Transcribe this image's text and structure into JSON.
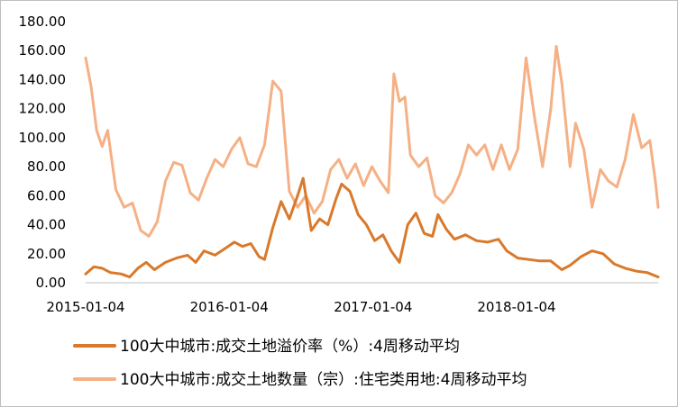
{
  "chart_data": {
    "type": "line",
    "title": "",
    "xlabel": "",
    "ylabel": "",
    "ylim": [
      0,
      180
    ],
    "yticks": [
      "0.00",
      "20.00",
      "40.00",
      "60.00",
      "80.00",
      "100.00",
      "120.00",
      "140.00",
      "160.00",
      "180.00"
    ],
    "xticks": [
      "2015-01-04",
      "2016-01-04",
      "2017-01-04",
      "2018-01-04"
    ],
    "xtick_values": [
      "2015-01-04",
      "2016-01-04",
      "2017-01-04",
      "2018-01-04"
    ],
    "x_start": "2015-01-04",
    "x_end": "2018-12-30",
    "grid": false,
    "legend_position": "bottom",
    "series": [
      {
        "name": "100大中城市:成交土地溢价率（%）:4周移动平均",
        "color": "#d9792b",
        "points": [
          [
            "2015-01-04",
            6
          ],
          [
            "2015-01-25",
            11
          ],
          [
            "2015-02-15",
            10
          ],
          [
            "2015-03-08",
            7
          ],
          [
            "2015-04-05",
            6
          ],
          [
            "2015-04-26",
            4
          ],
          [
            "2015-05-17",
            10
          ],
          [
            "2015-06-07",
            14
          ],
          [
            "2015-06-28",
            9
          ],
          [
            "2015-07-26",
            14
          ],
          [
            "2015-08-23",
            17
          ],
          [
            "2015-09-20",
            19
          ],
          [
            "2015-10-11",
            14
          ],
          [
            "2015-11-01",
            22
          ],
          [
            "2015-11-29",
            19
          ],
          [
            "2015-12-27",
            24
          ],
          [
            "2016-01-17",
            28
          ],
          [
            "2016-02-07",
            25
          ],
          [
            "2016-02-28",
            27
          ],
          [
            "2016-03-20",
            18
          ],
          [
            "2016-04-03",
            16
          ],
          [
            "2016-04-24",
            38
          ],
          [
            "2016-05-15",
            56
          ],
          [
            "2016-06-05",
            44
          ],
          [
            "2016-06-26",
            60
          ],
          [
            "2016-07-10",
            72
          ],
          [
            "2016-07-31",
            36
          ],
          [
            "2016-08-21",
            44
          ],
          [
            "2016-09-11",
            40
          ],
          [
            "2016-10-02",
            58
          ],
          [
            "2016-10-16",
            68
          ],
          [
            "2016-11-06",
            63
          ],
          [
            "2016-11-27",
            47
          ],
          [
            "2016-12-18",
            40
          ],
          [
            "2017-01-08",
            29
          ],
          [
            "2017-01-29",
            33
          ],
          [
            "2017-02-19",
            22
          ],
          [
            "2017-03-12",
            14
          ],
          [
            "2017-04-02",
            40
          ],
          [
            "2017-04-23",
            48
          ],
          [
            "2017-05-14",
            34
          ],
          [
            "2017-06-04",
            32
          ],
          [
            "2017-06-18",
            47
          ],
          [
            "2017-07-09",
            37
          ],
          [
            "2017-07-30",
            30
          ],
          [
            "2017-08-27",
            33
          ],
          [
            "2017-09-24",
            29
          ],
          [
            "2017-10-22",
            28
          ],
          [
            "2017-11-19",
            30
          ],
          [
            "2017-12-10",
            22
          ],
          [
            "2018-01-07",
            17
          ],
          [
            "2018-02-04",
            16
          ],
          [
            "2018-03-04",
            15
          ],
          [
            "2018-04-01",
            15
          ],
          [
            "2018-04-29",
            9
          ],
          [
            "2018-05-20",
            12
          ],
          [
            "2018-06-17",
            18
          ],
          [
            "2018-07-15",
            22
          ],
          [
            "2018-08-12",
            20
          ],
          [
            "2018-09-09",
            13
          ],
          [
            "2018-10-07",
            10
          ],
          [
            "2018-11-04",
            8
          ],
          [
            "2018-12-02",
            7
          ],
          [
            "2018-12-30",
            4
          ]
        ]
      },
      {
        "name": "100大中城市:成交土地数量（宗）:住宅类用地:4周移动平均",
        "color": "#f5b085",
        "points": [
          [
            "2015-01-04",
            155
          ],
          [
            "2015-01-18",
            135
          ],
          [
            "2015-02-01",
            105
          ],
          [
            "2015-02-15",
            94
          ],
          [
            "2015-03-01",
            105
          ],
          [
            "2015-03-22",
            64
          ],
          [
            "2015-04-12",
            52
          ],
          [
            "2015-05-03",
            55
          ],
          [
            "2015-05-24",
            36
          ],
          [
            "2015-06-14",
            32
          ],
          [
            "2015-07-05",
            42
          ],
          [
            "2015-07-26",
            70
          ],
          [
            "2015-08-16",
            83
          ],
          [
            "2015-09-06",
            81
          ],
          [
            "2015-09-27",
            62
          ],
          [
            "2015-10-18",
            57
          ],
          [
            "2015-11-08",
            72
          ],
          [
            "2015-11-29",
            85
          ],
          [
            "2015-12-20",
            80
          ],
          [
            "2016-01-10",
            92
          ],
          [
            "2016-01-31",
            100
          ],
          [
            "2016-02-21",
            82
          ],
          [
            "2016-03-13",
            80
          ],
          [
            "2016-04-03",
            95
          ],
          [
            "2016-04-24",
            139
          ],
          [
            "2016-05-15",
            132
          ],
          [
            "2016-06-05",
            63
          ],
          [
            "2016-06-26",
            52
          ],
          [
            "2016-07-17",
            60
          ],
          [
            "2016-08-07",
            48
          ],
          [
            "2016-08-28",
            56
          ],
          [
            "2016-09-18",
            78
          ],
          [
            "2016-10-09",
            85
          ],
          [
            "2016-10-30",
            72
          ],
          [
            "2016-11-20",
            82
          ],
          [
            "2016-12-11",
            67
          ],
          [
            "2017-01-01",
            80
          ],
          [
            "2017-01-22",
            70
          ],
          [
            "2017-02-12",
            62
          ],
          [
            "2017-02-26",
            144
          ],
          [
            "2017-03-12",
            125
          ],
          [
            "2017-03-26",
            128
          ],
          [
            "2017-04-09",
            88
          ],
          [
            "2017-04-30",
            80
          ],
          [
            "2017-05-21",
            86
          ],
          [
            "2017-06-11",
            60
          ],
          [
            "2017-07-02",
            55
          ],
          [
            "2017-07-23",
            62
          ],
          [
            "2017-08-13",
            75
          ],
          [
            "2017-09-03",
            95
          ],
          [
            "2017-09-24",
            88
          ],
          [
            "2017-10-15",
            95
          ],
          [
            "2017-11-05",
            78
          ],
          [
            "2017-11-26",
            95
          ],
          [
            "2017-12-17",
            78
          ],
          [
            "2018-01-07",
            92
          ],
          [
            "2018-01-28",
            155
          ],
          [
            "2018-02-18",
            115
          ],
          [
            "2018-03-11",
            80
          ],
          [
            "2018-04-01",
            120
          ],
          [
            "2018-04-15",
            163
          ],
          [
            "2018-04-29",
            138
          ],
          [
            "2018-05-20",
            80
          ],
          [
            "2018-06-03",
            110
          ],
          [
            "2018-06-24",
            92
          ],
          [
            "2018-07-15",
            52
          ],
          [
            "2018-08-05",
            78
          ],
          [
            "2018-08-26",
            70
          ],
          [
            "2018-09-16",
            66
          ],
          [
            "2018-10-07",
            85
          ],
          [
            "2018-10-28",
            116
          ],
          [
            "2018-11-18",
            93
          ],
          [
            "2018-12-09",
            98
          ],
          [
            "2018-12-23",
            70
          ],
          [
            "2018-12-30",
            52
          ]
        ]
      }
    ]
  }
}
